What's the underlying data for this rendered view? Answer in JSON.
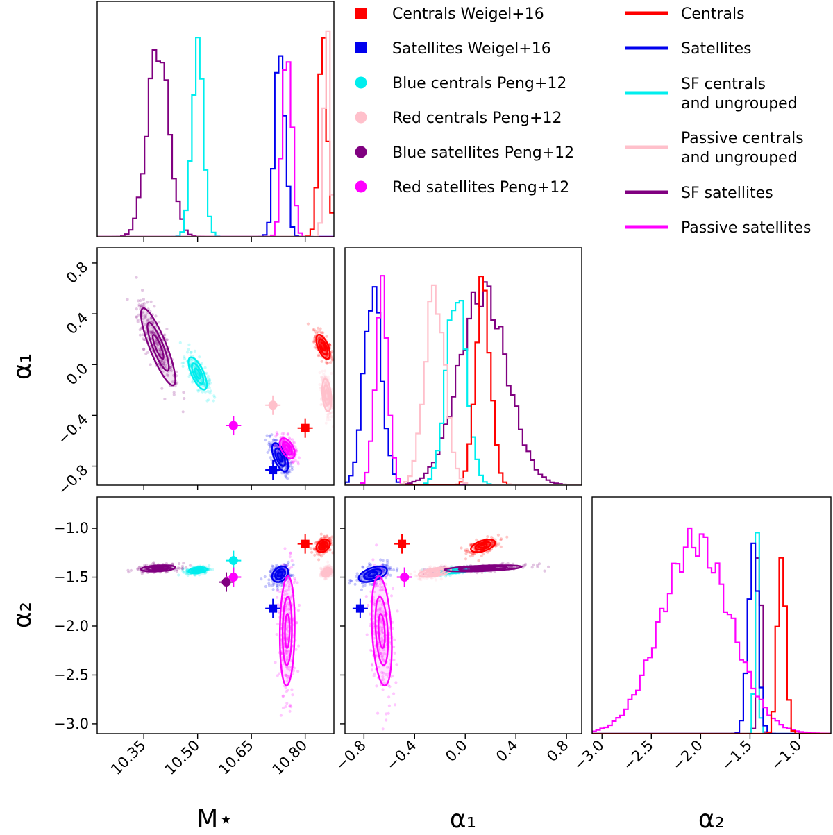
{
  "chart_data": {
    "type": "corner",
    "parameters": [
      {
        "name": "M*",
        "label": "M⋆",
        "range": [
          10.22,
          10.88
        ],
        "ticks": [
          10.35,
          10.5,
          10.65,
          10.8
        ],
        "tick_labels": [
          "10.35",
          "10.50",
          "10.65",
          "10.80"
        ]
      },
      {
        "name": "alpha1",
        "label": "α₁",
        "range": [
          -0.95,
          0.92
        ],
        "ticks": [
          -0.8,
          -0.4,
          0.0,
          0.4,
          0.8
        ],
        "tick_labels": [
          "−0.8",
          "−0.4",
          "0.0",
          "0.4",
          "0.8"
        ]
      },
      {
        "name": "alpha2",
        "label": "α₂",
        "range": [
          -3.1,
          -0.68
        ],
        "ticks": [
          -3.0,
          -2.5,
          -2.0,
          -1.5,
          -1.0
        ],
        "tick_labels": [
          "−3.0",
          "−2.5",
          "−2.0",
          "−1.5",
          "−1.0"
        ]
      }
    ],
    "posteriors": [
      {
        "name": "Centrals",
        "color": "#ff0000",
        "mstar": [
          10.85,
          0.012
        ],
        "alpha1": [
          0.14,
          0.06
        ],
        "alpha2": [
          -1.18,
          0.04
        ],
        "corr_m_a1": -0.6
      },
      {
        "name": "Satellites",
        "color": "#0000ee",
        "mstar": [
          10.73,
          0.014
        ],
        "alpha1": [
          -0.73,
          0.07
        ],
        "alpha2": [
          -1.47,
          0.05
        ],
        "corr_m_a1": -0.6
      },
      {
        "name": "SF centrals and ungrouped",
        "color": "#00eeee",
        "mstar": [
          10.5,
          0.016
        ],
        "alpha1": [
          -0.07,
          0.08
        ],
        "alpha2": [
          -1.43,
          0.02
        ],
        "corr_m_a1": -0.7
      },
      {
        "name": "Passive centrals and ungrouped",
        "color": "#ffc0cb",
        "mstar": [
          10.86,
          0.008
        ],
        "alpha1": [
          -0.24,
          0.08
        ],
        "alpha2": [
          -1.45,
          0.03
        ],
        "corr_m_a1": -0.3
      },
      {
        "name": "SF satellites",
        "color": "#800080",
        "mstar": [
          10.39,
          0.03
        ],
        "alpha1": [
          0.14,
          0.19
        ],
        "alpha2": [
          -1.41,
          0.02
        ],
        "corr_m_a1": -0.85
      },
      {
        "name": "Passive satellites",
        "color": "#ff00ff",
        "mstar": [
          10.75,
          0.013
        ],
        "alpha1": [
          -0.66,
          0.05
        ],
        "alpha2": [
          -2.05,
          0.35
        ],
        "corr_m_a1": -0.5
      }
    ],
    "literature_points": [
      {
        "name": "Centrals Weigel+16",
        "marker": "square",
        "color": "#ff0000",
        "mstar": 10.8,
        "alpha1": -0.5,
        "alpha2": -1.16
      },
      {
        "name": "Satellites Weigel+16",
        "marker": "square",
        "color": "#0000ee",
        "mstar": 10.71,
        "alpha1": -0.83,
        "alpha2": -1.82
      },
      {
        "name": "Blue centrals Peng+12",
        "marker": "circle",
        "color": "#00eeee",
        "mstar": 10.6,
        "alpha1": null,
        "alpha2": -1.33
      },
      {
        "name": "Red centrals Peng+12",
        "marker": "circle",
        "color": "#ffc0cb",
        "mstar": 10.71,
        "alpha1": -0.32,
        "alpha2": null
      },
      {
        "name": "Blue satellites Peng+12",
        "marker": "circle",
        "color": "#800080",
        "mstar": 10.58,
        "alpha1": null,
        "alpha2": -1.55
      },
      {
        "name": "Red satellites Peng+12",
        "marker": "circle",
        "color": "#ff00ff",
        "mstar": 10.6,
        "alpha1": -0.48,
        "alpha2": -1.5
      }
    ],
    "legend_left": [
      {
        "label": "Centrals Weigel+16",
        "marker": "square",
        "color": "#ff0000"
      },
      {
        "label": "Satellites Weigel+16",
        "marker": "square",
        "color": "#0000ee"
      },
      {
        "label": "Blue centrals Peng+12",
        "marker": "circle",
        "color": "#00eeee"
      },
      {
        "label": "Red centrals Peng+12",
        "marker": "circle",
        "color": "#ffc0cb"
      },
      {
        "label": "Blue satellites Peng+12",
        "marker": "circle",
        "color": "#800080"
      },
      {
        "label": "Red satellites Peng+12",
        "marker": "circle",
        "color": "#ff00ff"
      }
    ],
    "legend_right": [
      {
        "label": "Centrals",
        "color": "#ff0000"
      },
      {
        "label": "Satellites",
        "color": "#0000ee"
      },
      {
        "label": "SF centrals\nand ungrouped",
        "color": "#00eeee"
      },
      {
        "label": "Passive centrals\nand ungrouped",
        "color": "#ffc0cb"
      },
      {
        "label": "SF satellites",
        "color": "#800080"
      },
      {
        "label": "Passive satellites",
        "color": "#ff00ff"
      }
    ]
  }
}
